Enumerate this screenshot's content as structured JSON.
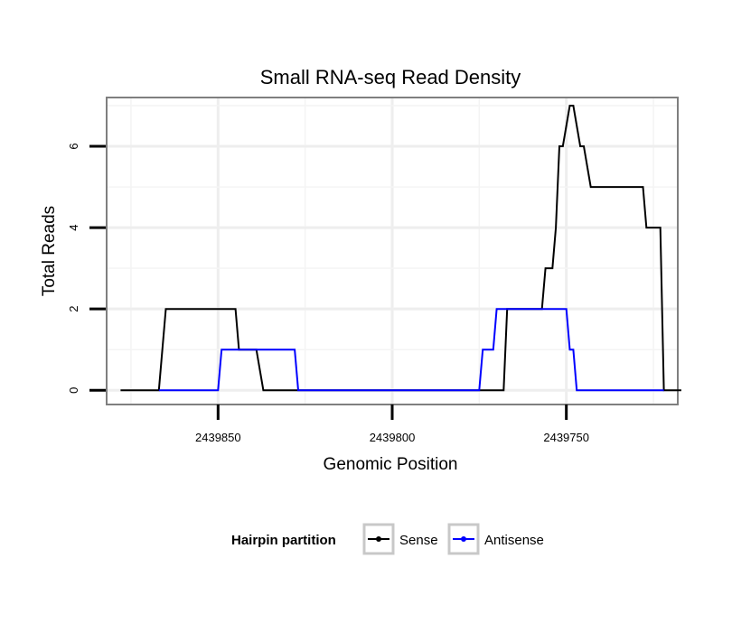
{
  "chart_data": {
    "type": "line",
    "title": "Small RNA-seq Read Density",
    "xlabel": "Genomic Position",
    "ylabel": "Total Reads",
    "x_reversed": true,
    "xlim": [
      2439882,
      2439718
    ],
    "ylim": [
      -0.35,
      7.2
    ],
    "x_ticks": [
      2439850,
      2439800,
      2439750
    ],
    "x_tick_labels": [
      "2439850",
      "2439800",
      "2439750"
    ],
    "y_ticks": [
      0,
      2,
      4,
      6
    ],
    "y_tick_labels": [
      "0",
      "2",
      "4",
      "6"
    ],
    "grid": true,
    "legend": {
      "title": "Hairpin partition",
      "position": "bottom",
      "entries": [
        "Sense",
        "Antisense"
      ]
    },
    "series": [
      {
        "name": "Sense",
        "color": "#000000",
        "x": [
          2439878,
          2439867,
          2439865,
          2439845,
          2439844,
          2439839,
          2439837,
          2439768,
          2439767,
          2439757,
          2439756,
          2439754,
          2439753,
          2439752,
          2439751,
          2439749,
          2439748,
          2439746,
          2439745,
          2439743,
          2439742,
          2439740,
          2439739,
          2439728,
          2439727,
          2439726,
          2439725,
          2439723,
          2439722,
          2439721,
          2439720,
          2439717
        ],
        "y": [
          0,
          0,
          2,
          2,
          1,
          1,
          0,
          0,
          2,
          2,
          3,
          3,
          4,
          6,
          6,
          7,
          7,
          6,
          6,
          5,
          5,
          5,
          5,
          5,
          4,
          4,
          4,
          4,
          0,
          0,
          0,
          0
        ]
      },
      {
        "name": "Antisense",
        "color": "#0000ff",
        "x": [
          2439867,
          2439850,
          2439849,
          2439840,
          2439828,
          2439827,
          2439775,
          2439774,
          2439771,
          2439770,
          2439750,
          2439749,
          2439748,
          2439747,
          2439738,
          2439722
        ],
        "y": [
          0,
          0,
          1,
          1,
          1,
          0,
          0,
          1,
          1,
          2,
          2,
          1,
          1,
          0,
          0,
          0
        ]
      }
    ]
  }
}
